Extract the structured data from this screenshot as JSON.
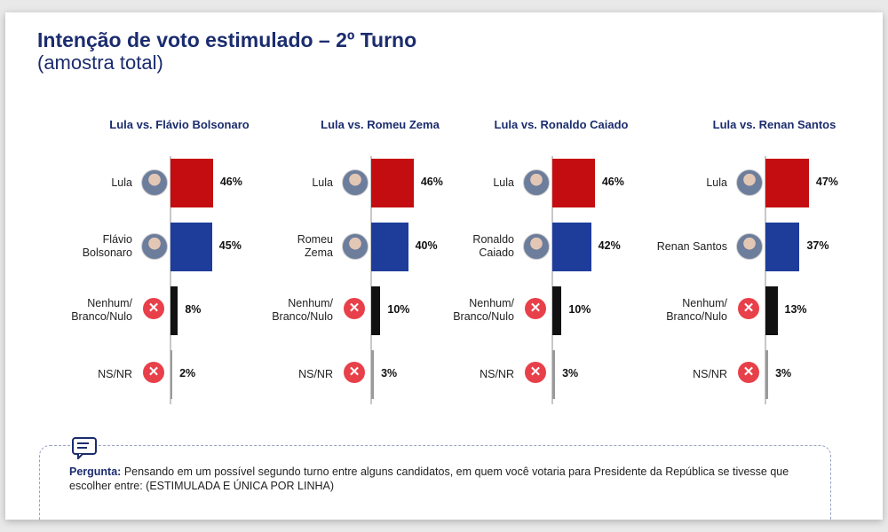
{
  "header": {
    "title": "Intenção de voto estimulado – 2º Turno",
    "subtitle": "(amostra total)"
  },
  "chart_data": [
    {
      "type": "bar",
      "orientation": "horizontal",
      "title": "Lula vs. Flávio Bolsonaro",
      "categories": [
        "Lula",
        "Flávio\nBolsonaro",
        "Nenhum/\nBranco/Nulo",
        "NS/NR"
      ],
      "values": [
        46,
        45,
        8,
        2
      ],
      "value_labels": [
        "46%",
        "45%",
        "8%",
        "2%"
      ],
      "colors": [
        "#c40d10",
        "#1e3d9a",
        "#111111",
        "#9a9a9a"
      ]
    },
    {
      "type": "bar",
      "orientation": "horizontal",
      "title": "Lula vs. Romeu Zema",
      "categories": [
        "Lula",
        "Romeu\nZema",
        "Nenhum/\nBranco/Nulo",
        "NS/NR"
      ],
      "values": [
        46,
        40,
        10,
        3
      ],
      "value_labels": [
        "46%",
        "40%",
        "10%",
        "3%"
      ],
      "colors": [
        "#c40d10",
        "#1e3d9a",
        "#111111",
        "#9a9a9a"
      ]
    },
    {
      "type": "bar",
      "orientation": "horizontal",
      "title": "Lula vs. Ronaldo Caiado",
      "categories": [
        "Lula",
        "Ronaldo\nCaiado",
        "Nenhum/\nBranco/Nulo",
        "NS/NR"
      ],
      "values": [
        46,
        42,
        10,
        3
      ],
      "value_labels": [
        "46%",
        "42%",
        "10%",
        "3%"
      ],
      "colors": [
        "#c40d10",
        "#1e3d9a",
        "#111111",
        "#9a9a9a"
      ]
    },
    {
      "type": "bar",
      "orientation": "horizontal",
      "title": "Lula vs. Renan Santos",
      "categories": [
        "Lula",
        "Renan Santos",
        "Nenhum/\nBranco/Nulo",
        "NS/NR"
      ],
      "values": [
        47,
        37,
        13,
        3
      ],
      "value_labels": [
        "47%",
        "37%",
        "13%",
        "3%"
      ],
      "colors": [
        "#c40d10",
        "#1e3d9a",
        "#111111",
        "#9a9a9a"
      ]
    }
  ],
  "question": {
    "label": "Pergunta:",
    "text": "Pensando em um possível segundo turno entre alguns candidatos, em quem você votaria para Presidente da República se tivesse que escolher entre: (ESTIMULADA E ÚNICA POR LINHA)"
  }
}
